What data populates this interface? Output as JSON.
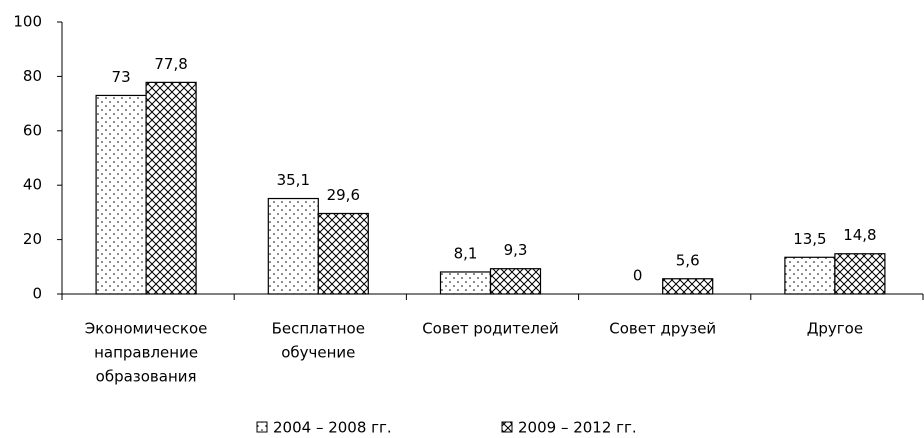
{
  "chart_data": {
    "type": "bar",
    "categories": [
      [
        "Экономическое",
        "направление",
        "образования"
      ],
      [
        "Бесплатное",
        "обучение"
      ],
      [
        "Совет родителей"
      ],
      [
        "Совет друзей"
      ],
      [
        "Другое"
      ]
    ],
    "series": [
      {
        "name": "2004 – 2008 гг.",
        "pattern": "dots",
        "color": "#000000",
        "values": [
          73,
          35.1,
          8.1,
          0,
          13.5
        ],
        "value_labels": [
          "73",
          "35,1",
          "8,1",
          "0",
          "13,5"
        ]
      },
      {
        "name": "2009 – 2012 гг.",
        "pattern": "crosshatch",
        "color": "#000000",
        "values": [
          77.8,
          29.6,
          9.3,
          5.6,
          14.8
        ],
        "value_labels": [
          "77,8",
          "29,6",
          "9,3",
          "5,6",
          "14,8"
        ]
      }
    ],
    "ylim": [
      0,
      100
    ],
    "yticks": [
      0,
      20,
      40,
      60,
      80,
      100
    ],
    "grid": false,
    "legend": "bottom"
  }
}
